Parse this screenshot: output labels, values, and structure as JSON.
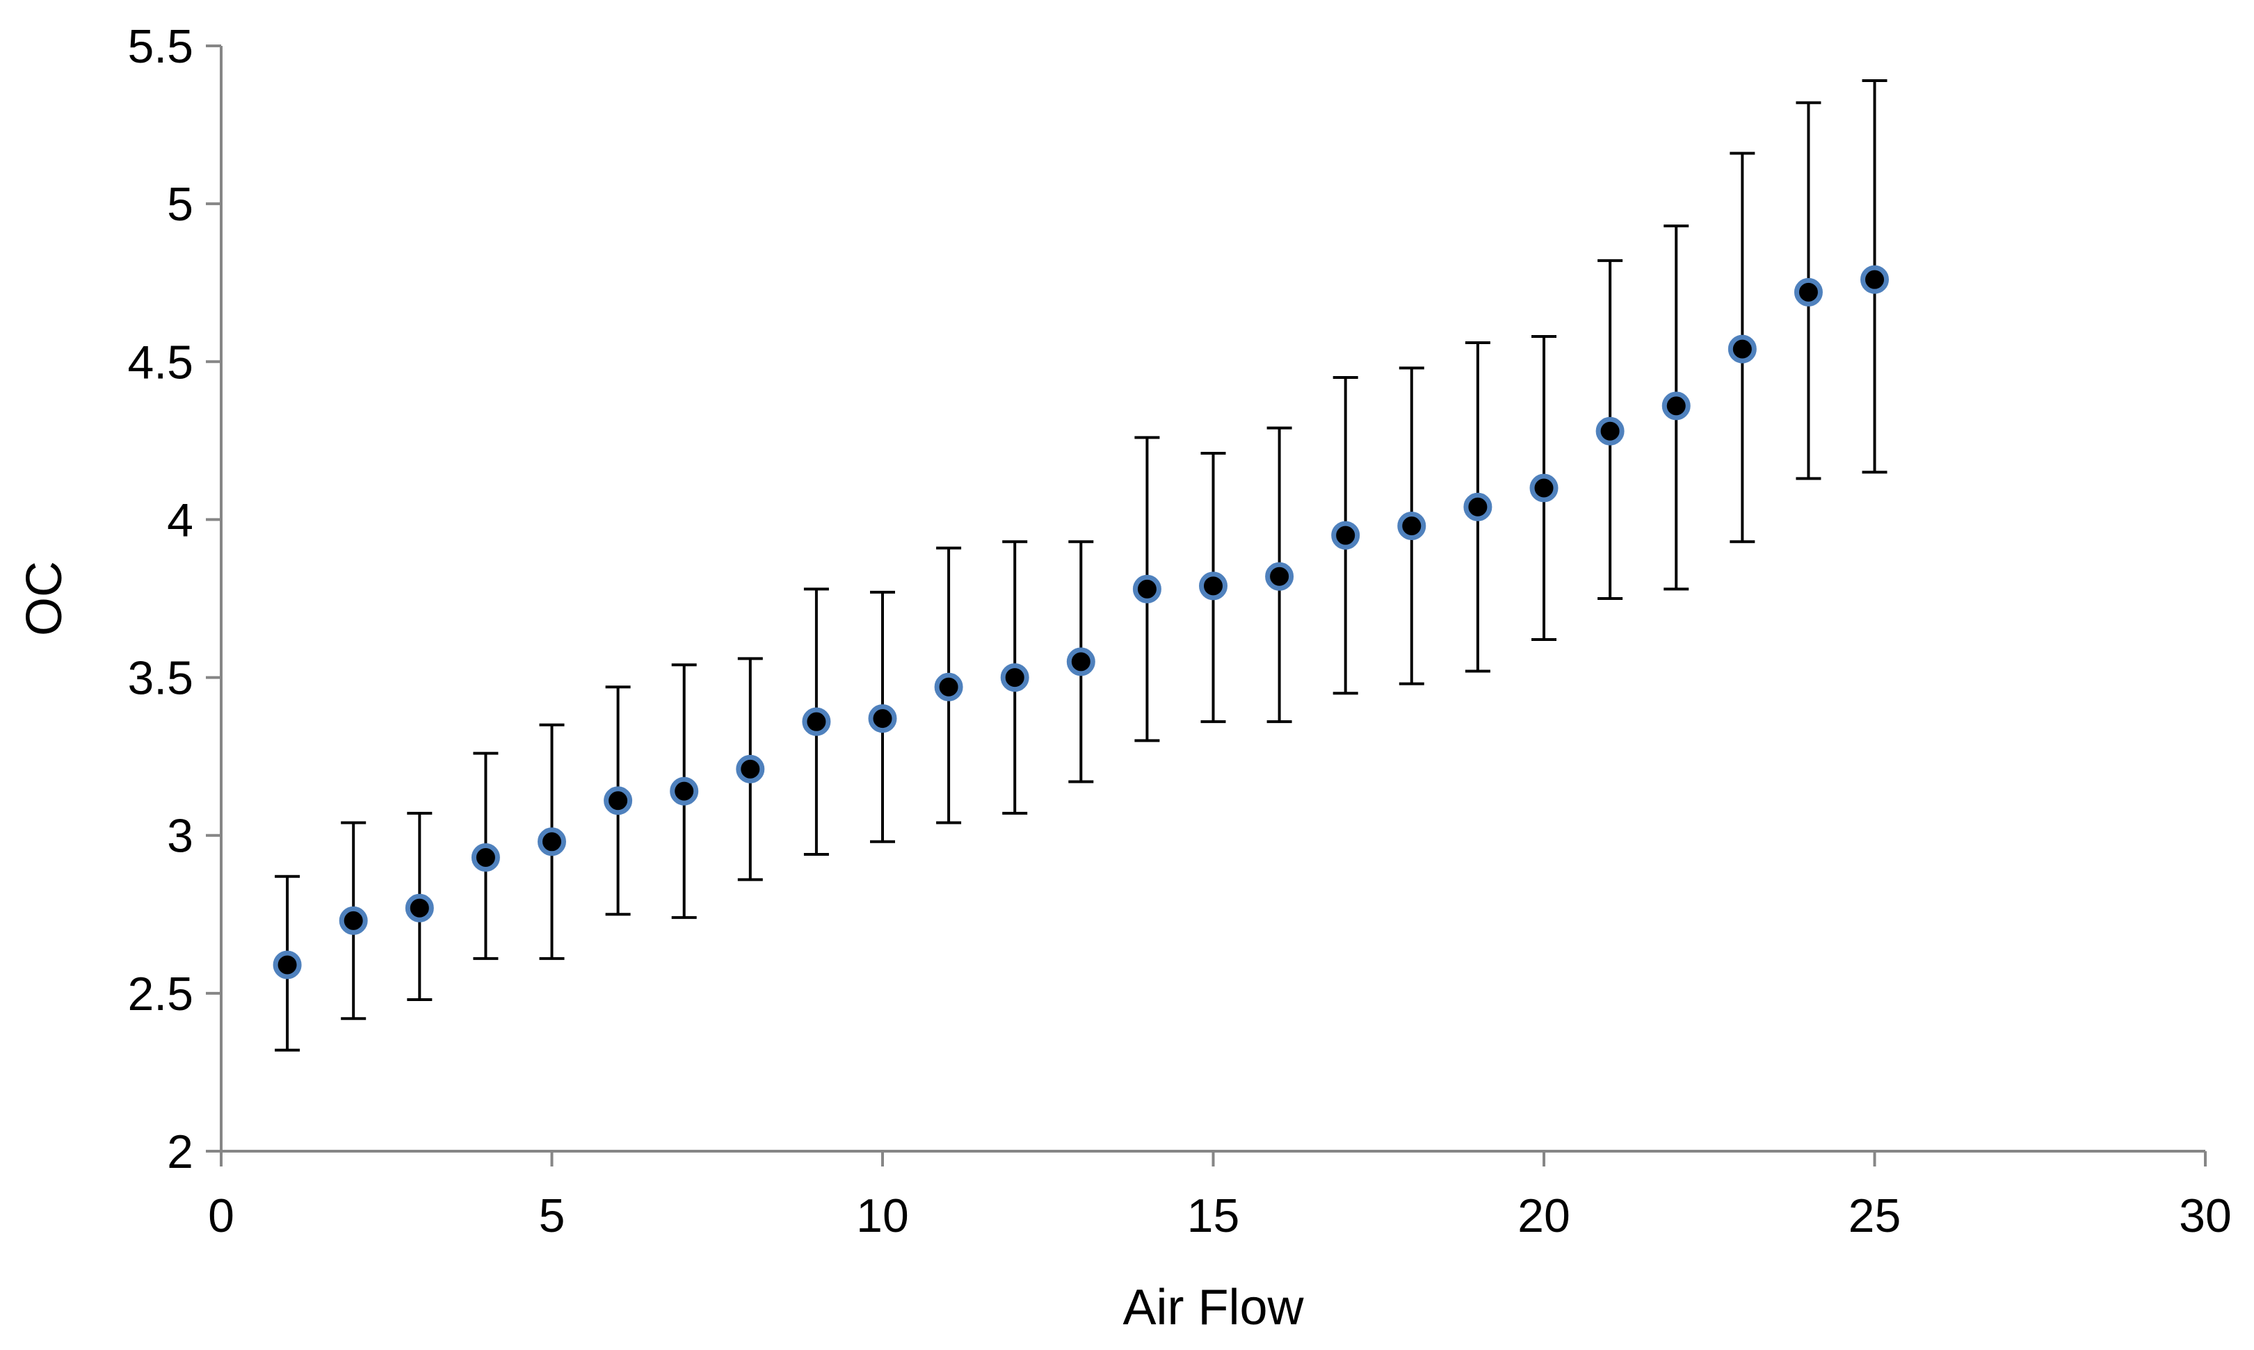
{
  "chart_data": {
    "type": "scatter",
    "title": "",
    "xlabel": "Air Flow",
    "ylabel": "OC",
    "xlim": [
      0,
      30
    ],
    "ylim": [
      2,
      5.5
    ],
    "xticks": [
      0,
      5,
      10,
      15,
      20,
      25,
      30
    ],
    "yticks": [
      2,
      2.5,
      3,
      3.5,
      4,
      4.5,
      5,
      5.5
    ],
    "xtick_labels": [
      "0",
      "5",
      "10",
      "15",
      "20",
      "25",
      "30"
    ],
    "ytick_labels": [
      "2",
      "2.5",
      "3",
      "3.5",
      "4",
      "4.5",
      "5",
      "5.5"
    ],
    "grid": false,
    "legend": "none",
    "marker_fill": "#000000",
    "marker_edge": "#4f81bd",
    "error_bar_color": "#000000",
    "axis_color": "#868686",
    "series": [
      {
        "x": [
          1,
          2,
          3,
          4,
          5,
          6,
          7,
          8,
          9,
          10,
          11,
          12,
          13,
          14,
          15,
          16,
          17,
          18,
          19,
          20,
          21,
          22,
          23,
          24,
          25
        ],
        "y": [
          2.59,
          2.73,
          2.77,
          2.93,
          2.98,
          3.11,
          3.14,
          3.21,
          3.36,
          3.37,
          3.47,
          3.5,
          3.55,
          3.78,
          3.79,
          3.82,
          3.95,
          3.98,
          4.04,
          4.1,
          4.28,
          4.36,
          4.54,
          4.72,
          4.76
        ],
        "err_low": [
          2.32,
          2.42,
          2.48,
          2.61,
          2.61,
          2.75,
          2.74,
          2.86,
          2.94,
          2.98,
          3.04,
          3.07,
          3.17,
          3.3,
          3.36,
          3.36,
          3.45,
          3.48,
          3.52,
          3.62,
          3.75,
          3.78,
          3.93,
          4.13,
          4.15
        ],
        "err_high": [
          2.87,
          3.04,
          3.07,
          3.26,
          3.35,
          3.47,
          3.54,
          3.56,
          3.78,
          3.77,
          3.91,
          3.93,
          3.93,
          4.26,
          4.21,
          4.29,
          4.45,
          4.48,
          4.56,
          4.58,
          4.82,
          4.93,
          5.16,
          5.32,
          5.39
        ]
      }
    ]
  }
}
